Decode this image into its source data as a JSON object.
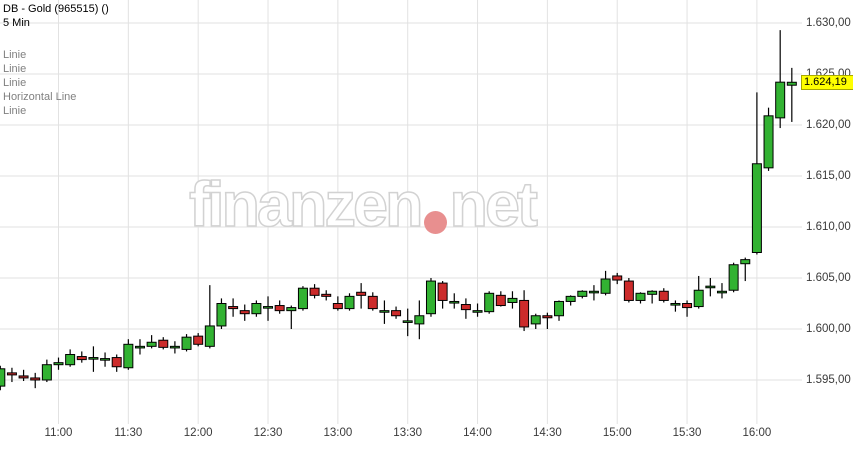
{
  "header": {
    "title": "DB - Gold (965515) ()",
    "interval": "5 Min"
  },
  "overlays": [
    "Linie",
    "Linie",
    "Linie",
    "Horizontal Line",
    "Linie"
  ],
  "watermark": {
    "left": "finanzen",
    "right": "net",
    "dot_color": "#e88f8f"
  },
  "price_axis": {
    "levels": [
      {
        "label": "1.630,00",
        "value": 1630
      },
      {
        "label": "1.625,00",
        "value": 1625
      },
      {
        "label": "1.620,00",
        "value": 1620
      },
      {
        "label": "1.615,00",
        "value": 1615
      },
      {
        "label": "1.610,00",
        "value": 1610
      },
      {
        "label": "1.605,00",
        "value": 1605
      },
      {
        "label": "1.600,00",
        "value": 1600
      },
      {
        "label": "1.595,00",
        "value": 1595
      }
    ],
    "current": {
      "label": "1.624,19",
      "value": 1624.19,
      "bg": "#ffff00"
    }
  },
  "time_axis": {
    "labels": [
      "11:00",
      "11:30",
      "12:00",
      "12:30",
      "13:00",
      "13:30",
      "14:00",
      "14:30",
      "15:00",
      "15:30",
      "16:00"
    ]
  },
  "chart_data": {
    "type": "candlestick",
    "title": "DB - Gold (965515) 5 Min",
    "ylim": [
      1592.5,
      1631.5
    ],
    "x_range": [
      "10:35",
      "16:15"
    ],
    "grid": true,
    "colors": {
      "up": "#32b232",
      "down": "#cc2b2b",
      "wick": "#000000",
      "grid": "#e2e2e2"
    },
    "candles": [
      {
        "t": "10:35",
        "o": 1594.4,
        "h": 1596.4,
        "l": 1594.0,
        "c": 1596.1
      },
      {
        "t": "10:40",
        "o": 1595.7,
        "h": 1596.2,
        "l": 1594.8,
        "c": 1595.5
      },
      {
        "t": "10:45",
        "o": 1595.4,
        "h": 1596.0,
        "l": 1594.9,
        "c": 1595.2
      },
      {
        "t": "10:50",
        "o": 1595.2,
        "h": 1595.7,
        "l": 1594.2,
        "c": 1595.0
      },
      {
        "t": "10:55",
        "o": 1595.0,
        "h": 1597.0,
        "l": 1594.8,
        "c": 1596.5
      },
      {
        "t": "11:00",
        "o": 1596.5,
        "h": 1597.2,
        "l": 1596.0,
        "c": 1596.7
      },
      {
        "t": "11:05",
        "o": 1596.5,
        "h": 1598.0,
        "l": 1596.3,
        "c": 1597.5
      },
      {
        "t": "11:10",
        "o": 1597.3,
        "h": 1597.8,
        "l": 1596.7,
        "c": 1597.0
      },
      {
        "t": "11:15",
        "o": 1597.1,
        "h": 1598.3,
        "l": 1595.8,
        "c": 1597.2
      },
      {
        "t": "11:20",
        "o": 1597.0,
        "h": 1597.7,
        "l": 1596.3,
        "c": 1597.1
      },
      {
        "t": "11:25",
        "o": 1597.2,
        "h": 1597.5,
        "l": 1595.8,
        "c": 1596.3
      },
      {
        "t": "11:30",
        "o": 1596.2,
        "h": 1599.0,
        "l": 1596.0,
        "c": 1598.5
      },
      {
        "t": "11:35",
        "o": 1598.3,
        "h": 1599.0,
        "l": 1597.5,
        "c": 1598.3
      },
      {
        "t": "11:40",
        "o": 1598.3,
        "h": 1599.4,
        "l": 1598.1,
        "c": 1598.7
      },
      {
        "t": "11:45",
        "o": 1598.9,
        "h": 1599.2,
        "l": 1598.0,
        "c": 1598.2
      },
      {
        "t": "11:50",
        "o": 1598.3,
        "h": 1598.8,
        "l": 1597.6,
        "c": 1598.3
      },
      {
        "t": "11:55",
        "o": 1598.0,
        "h": 1599.5,
        "l": 1597.8,
        "c": 1599.2
      },
      {
        "t": "12:00",
        "o": 1599.3,
        "h": 1599.6,
        "l": 1598.3,
        "c": 1598.5
      },
      {
        "t": "12:05",
        "o": 1598.3,
        "h": 1604.3,
        "l": 1598.1,
        "c": 1600.3
      },
      {
        "t": "12:10",
        "o": 1600.3,
        "h": 1603.0,
        "l": 1600.0,
        "c": 1602.5
      },
      {
        "t": "12:15",
        "o": 1602.2,
        "h": 1603.0,
        "l": 1601.2,
        "c": 1602.0
      },
      {
        "t": "12:20",
        "o": 1601.8,
        "h": 1602.4,
        "l": 1600.8,
        "c": 1601.5
      },
      {
        "t": "12:25",
        "o": 1601.5,
        "h": 1602.8,
        "l": 1601.2,
        "c": 1602.5
      },
      {
        "t": "12:30",
        "o": 1602.2,
        "h": 1603.2,
        "l": 1600.8,
        "c": 1602.2
      },
      {
        "t": "12:35",
        "o": 1602.3,
        "h": 1602.8,
        "l": 1601.5,
        "c": 1601.8
      },
      {
        "t": "12:40",
        "o": 1601.8,
        "h": 1602.3,
        "l": 1600.0,
        "c": 1602.1
      },
      {
        "t": "12:45",
        "o": 1602.0,
        "h": 1604.2,
        "l": 1601.8,
        "c": 1604.0
      },
      {
        "t": "12:50",
        "o": 1604.0,
        "h": 1604.4,
        "l": 1603.0,
        "c": 1603.3
      },
      {
        "t": "12:55",
        "o": 1603.4,
        "h": 1603.8,
        "l": 1602.8,
        "c": 1603.2
      },
      {
        "t": "13:00",
        "o": 1602.5,
        "h": 1603.2,
        "l": 1601.8,
        "c": 1602.0
      },
      {
        "t": "13:05",
        "o": 1602.0,
        "h": 1603.5,
        "l": 1601.8,
        "c": 1603.2
      },
      {
        "t": "13:10",
        "o": 1603.6,
        "h": 1604.5,
        "l": 1602.0,
        "c": 1603.3
      },
      {
        "t": "13:15",
        "o": 1603.2,
        "h": 1603.6,
        "l": 1601.8,
        "c": 1602.0
      },
      {
        "t": "13:20",
        "o": 1601.8,
        "h": 1602.8,
        "l": 1600.5,
        "c": 1601.8
      },
      {
        "t": "13:25",
        "o": 1601.8,
        "h": 1602.2,
        "l": 1601.0,
        "c": 1601.3
      },
      {
        "t": "13:30",
        "o": 1600.8,
        "h": 1602.0,
        "l": 1599.3,
        "c": 1600.8
      },
      {
        "t": "13:35",
        "o": 1600.5,
        "h": 1602.8,
        "l": 1599.0,
        "c": 1601.3
      },
      {
        "t": "13:40",
        "o": 1601.5,
        "h": 1605.0,
        "l": 1601.2,
        "c": 1604.7
      },
      {
        "t": "13:45",
        "o": 1604.5,
        "h": 1604.7,
        "l": 1602.0,
        "c": 1602.8
      },
      {
        "t": "13:50",
        "o": 1602.7,
        "h": 1603.5,
        "l": 1602.0,
        "c": 1602.7
      },
      {
        "t": "13:55",
        "o": 1602.4,
        "h": 1603.0,
        "l": 1601.0,
        "c": 1601.9
      },
      {
        "t": "14:00",
        "o": 1601.8,
        "h": 1602.5,
        "l": 1601.2,
        "c": 1601.8
      },
      {
        "t": "14:05",
        "o": 1601.7,
        "h": 1603.7,
        "l": 1601.5,
        "c": 1603.5
      },
      {
        "t": "14:10",
        "o": 1603.3,
        "h": 1603.7,
        "l": 1602.2,
        "c": 1602.3
      },
      {
        "t": "14:15",
        "o": 1602.6,
        "h": 1603.7,
        "l": 1602.0,
        "c": 1603.0
      },
      {
        "t": "14:20",
        "o": 1602.8,
        "h": 1603.8,
        "l": 1599.8,
        "c": 1600.2
      },
      {
        "t": "14:25",
        "o": 1600.5,
        "h": 1601.5,
        "l": 1600.0,
        "c": 1601.3
      },
      {
        "t": "14:30",
        "o": 1601.3,
        "h": 1601.6,
        "l": 1600.0,
        "c": 1601.1
      },
      {
        "t": "14:35",
        "o": 1601.3,
        "h": 1602.8,
        "l": 1600.8,
        "c": 1602.7
      },
      {
        "t": "14:40",
        "o": 1602.7,
        "h": 1603.3,
        "l": 1602.3,
        "c": 1603.2
      },
      {
        "t": "14:45",
        "o": 1603.2,
        "h": 1603.8,
        "l": 1603.0,
        "c": 1603.7
      },
      {
        "t": "14:50",
        "o": 1603.7,
        "h": 1604.3,
        "l": 1602.8,
        "c": 1603.7
      },
      {
        "t": "14:55",
        "o": 1603.5,
        "h": 1605.7,
        "l": 1603.3,
        "c": 1604.9
      },
      {
        "t": "15:00",
        "o": 1605.2,
        "h": 1605.5,
        "l": 1604.4,
        "c": 1604.8
      },
      {
        "t": "15:05",
        "o": 1604.7,
        "h": 1605.0,
        "l": 1602.6,
        "c": 1602.8
      },
      {
        "t": "15:10",
        "o": 1602.8,
        "h": 1603.6,
        "l": 1602.5,
        "c": 1603.5
      },
      {
        "t": "15:15",
        "o": 1603.4,
        "h": 1603.8,
        "l": 1602.5,
        "c": 1603.7
      },
      {
        "t": "15:20",
        "o": 1603.7,
        "h": 1604.0,
        "l": 1602.6,
        "c": 1602.8
      },
      {
        "t": "15:25",
        "o": 1602.5,
        "h": 1602.8,
        "l": 1601.7,
        "c": 1602.5
      },
      {
        "t": "15:30",
        "o": 1602.5,
        "h": 1602.8,
        "l": 1601.2,
        "c": 1602.1
      },
      {
        "t": "15:35",
        "o": 1602.2,
        "h": 1605.2,
        "l": 1602.0,
        "c": 1603.8
      },
      {
        "t": "15:40",
        "o": 1604.2,
        "h": 1605.0,
        "l": 1603.2,
        "c": 1604.2
      },
      {
        "t": "15:45",
        "o": 1603.7,
        "h": 1604.5,
        "l": 1603.0,
        "c": 1603.7
      },
      {
        "t": "15:50",
        "o": 1603.8,
        "h": 1606.5,
        "l": 1603.6,
        "c": 1606.3
      },
      {
        "t": "15:55",
        "o": 1606.4,
        "h": 1607.0,
        "l": 1604.7,
        "c": 1606.8
      },
      {
        "t": "16:00",
        "o": 1607.5,
        "h": 1623.2,
        "l": 1607.3,
        "c": 1616.2
      },
      {
        "t": "16:05",
        "o": 1615.8,
        "h": 1621.7,
        "l": 1615.5,
        "c": 1620.9
      },
      {
        "t": "16:10",
        "o": 1620.7,
        "h": 1629.3,
        "l": 1619.7,
        "c": 1624.2
      },
      {
        "t": "16:15",
        "o": 1623.9,
        "h": 1625.6,
        "l": 1620.3,
        "c": 1624.19
      }
    ]
  }
}
